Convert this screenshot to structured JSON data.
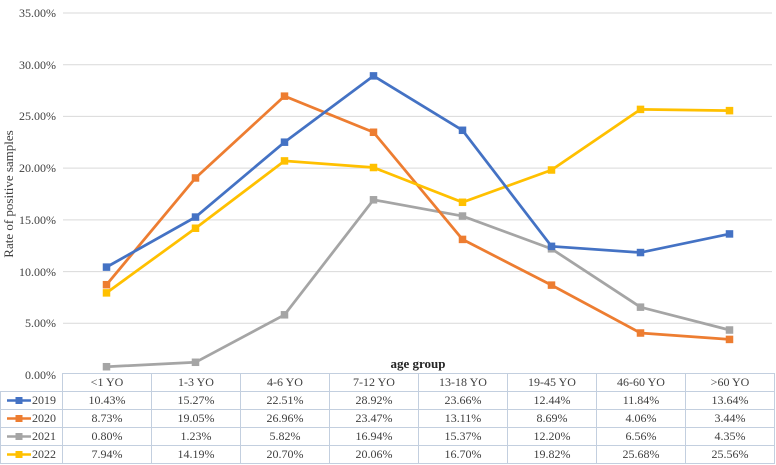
{
  "chart_data": {
    "type": "line",
    "title": "",
    "xlabel": "age group",
    "ylabel": "Rate of positive samples",
    "categories": [
      "<1 YO",
      "1-3 YO",
      "4-6 YO",
      "7-12 YO",
      "13-18 YO",
      "19-45 YO",
      "46-60 YO",
      ">60 YO"
    ],
    "series": [
      {
        "name": "2019",
        "color": "#4472C4",
        "values": [
          10.43,
          15.27,
          22.51,
          28.92,
          23.66,
          12.44,
          11.84,
          13.64
        ]
      },
      {
        "name": "2020",
        "color": "#ED7D31",
        "values": [
          8.73,
          19.05,
          26.96,
          23.47,
          13.11,
          8.69,
          4.06,
          3.44
        ]
      },
      {
        "name": "2021",
        "color": "#A5A5A5",
        "values": [
          0.8,
          1.23,
          5.82,
          16.94,
          15.37,
          12.2,
          6.56,
          4.35
        ]
      },
      {
        "name": "2022",
        "color": "#FFC000",
        "values": [
          7.94,
          14.19,
          20.7,
          20.06,
          16.7,
          19.82,
          25.68,
          25.56
        ]
      }
    ],
    "ylim": [
      0,
      35
    ],
    "y_tick_step": 5,
    "y_ticks": [
      "0.00%",
      "5.00%",
      "10.00%",
      "15.00%",
      "20.00%",
      "25.00%",
      "30.00%",
      "35.00%"
    ],
    "value_format": "percent-2dp",
    "grid": "horizontal",
    "marker": "square",
    "legend_position": "data-table-left-column"
  },
  "colors": {
    "gridline": "#D9D9D9",
    "table_border": "#C3CFDF",
    "text": "#3F3F3F"
  }
}
